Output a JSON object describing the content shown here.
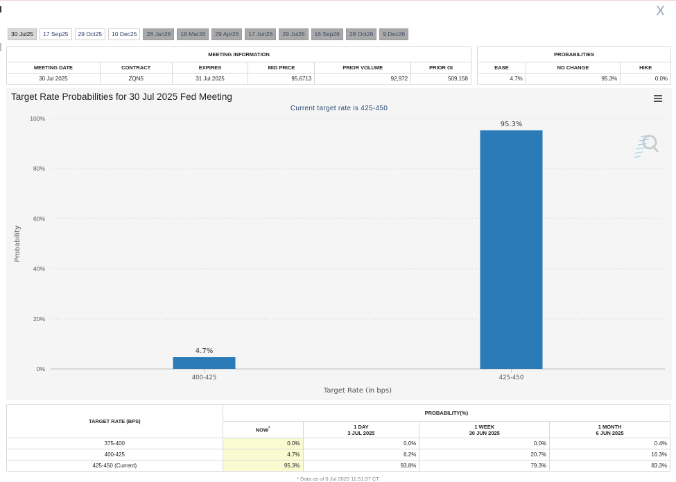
{
  "close_label": "X",
  "tabs": [
    {
      "label": "30 Jul25",
      "state": "active"
    },
    {
      "label": "17 Sep25",
      "state": "normal"
    },
    {
      "label": "29 Oct25",
      "state": "normal"
    },
    {
      "label": "10 Dec25",
      "state": "normal"
    },
    {
      "label": "28 Jan26",
      "state": "disabled"
    },
    {
      "label": "18 Mar26",
      "state": "disabled"
    },
    {
      "label": "29 Apr26",
      "state": "disabled"
    },
    {
      "label": "17 Jun26",
      "state": "disabled"
    },
    {
      "label": "29 Jul26",
      "state": "disabled"
    },
    {
      "label": "16 Sep26",
      "state": "disabled"
    },
    {
      "label": "28 Oct26",
      "state": "disabled"
    },
    {
      "label": "9 Dec26",
      "state": "disabled"
    }
  ],
  "meeting_info": {
    "title": "MEETING INFORMATION",
    "headers": [
      "MEETING DATE",
      "CONTRACT",
      "EXPIRES",
      "MID PRICE",
      "PRIOR VOLUME",
      "PRIOR OI"
    ],
    "row": [
      "30 Jul 2025",
      "ZQN5",
      "31 Jul 2025",
      "95.6713",
      "92,972",
      "509,158"
    ]
  },
  "probabilities": {
    "title": "PROBABILITIES",
    "headers": [
      "EASE",
      "NO CHANGE",
      "HIKE"
    ],
    "row": [
      "4.7%",
      "95.3%",
      "0.0%"
    ]
  },
  "chart": {
    "title": "Target Rate Probabilities for 30 Jul 2025 Fed Meeting",
    "subtitle": "Current target rate is 425-450"
  },
  "chart_data": {
    "type": "bar",
    "categories": [
      "400-425",
      "425-450"
    ],
    "values": [
      4.7,
      95.3
    ],
    "data_labels": [
      "4.7%",
      "95.3%"
    ],
    "title": "Target Rate Probabilities for 30 Jul 2025 Fed Meeting",
    "subtitle": "Current target rate is 425-450",
    "xlabel": "Target Rate (in bps)",
    "ylabel": "Probability",
    "ylim": [
      0,
      100
    ],
    "yticks": [
      "0%",
      "20%",
      "40%",
      "60%",
      "80%",
      "100%"
    ],
    "grid": true,
    "bar_color": "#2a7bb8"
  },
  "bottom_table": {
    "target_header": "TARGET RATE (BPS)",
    "prob_header": "PROBABILITY(%)",
    "columns": [
      {
        "line1": "NOW",
        "marker": "*",
        "line2": ""
      },
      {
        "line1": "1 DAY",
        "line2": "3 JUL 2025"
      },
      {
        "line1": "1 WEEK",
        "line2": "30 JUN 2025"
      },
      {
        "line1": "1 MONTH",
        "line2": "6 JUN 2025"
      }
    ],
    "rows": [
      {
        "rate": "375-400",
        "values": [
          "0.0%",
          "0.0%",
          "0.0%",
          "0.4%"
        ]
      },
      {
        "rate": "400-425",
        "values": [
          "4.7%",
          "6.2%",
          "20.7%",
          "16.3%"
        ]
      },
      {
        "rate": "425-450 (Current)",
        "values": [
          "95.3%",
          "93.8%",
          "79.3%",
          "83.3%"
        ]
      }
    ]
  },
  "footnote": "* Data as of 6 Jul 2025 11:51:37 CT",
  "colors": {
    "accent_bar": "#2a7bb8",
    "now_highlight": "#fafbd1",
    "tab_disabled": "#a9a9a9"
  }
}
